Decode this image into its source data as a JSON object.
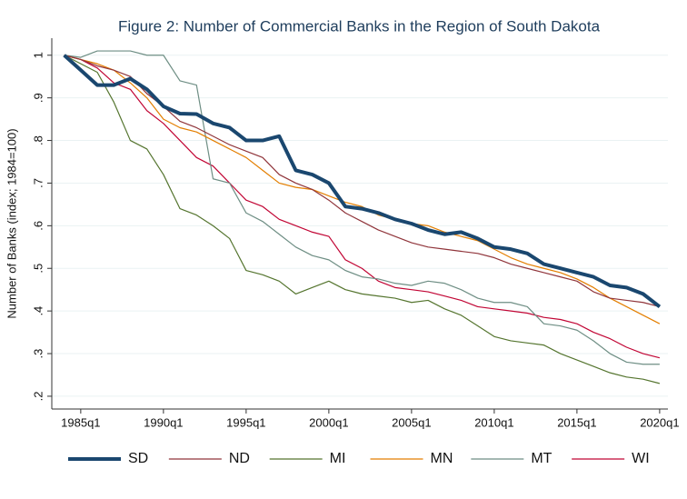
{
  "chart_data": {
    "type": "line",
    "title": "Figure 2: Number of Commercial Banks in the Region of South Dakota",
    "y_label": "Number of Banks (index; 1984=100)",
    "x": [
      96,
      100,
      104,
      108,
      112,
      116,
      120,
      124,
      128,
      132,
      136,
      140,
      144,
      148,
      152,
      156,
      160,
      164,
      168,
      172,
      176,
      180,
      184,
      188,
      192,
      196,
      200,
      204,
      208,
      212,
      216,
      220,
      224,
      228,
      232,
      236,
      240
    ],
    "xlim": [
      93,
      242
    ],
    "xticks": [
      {
        "value": 100,
        "label": "1985q1"
      },
      {
        "value": 120,
        "label": "1990q1"
      },
      {
        "value": 140,
        "label": "1995q1"
      },
      {
        "value": 160,
        "label": "2000q1"
      },
      {
        "value": 180,
        "label": "2005q1"
      },
      {
        "value": 200,
        "label": "2010q1"
      },
      {
        "value": 220,
        "label": "2015q1"
      },
      {
        "value": 240,
        "label": "2020q1"
      }
    ],
    "ylim": [
      0.17,
      1.04
    ],
    "yticks": [
      {
        "value": 0.2,
        "label": ".2"
      },
      {
        "value": 0.3,
        "label": ".3"
      },
      {
        "value": 0.4,
        "label": ".4"
      },
      {
        "value": 0.5,
        "label": ".5"
      },
      {
        "value": 0.6,
        "label": ".6"
      },
      {
        "value": 0.7,
        "label": ".7"
      },
      {
        "value": 0.8,
        "label": ".8"
      },
      {
        "value": 0.9,
        "label": ".9"
      },
      1
    ],
    "grid": true,
    "legend": "bottom",
    "series": [
      {
        "name": "SD",
        "color": "#1a476f",
        "width": 4,
        "values": [
          1.0,
          0.965,
          0.93,
          0.93,
          0.945,
          0.92,
          0.88,
          0.863,
          0.862,
          0.84,
          0.83,
          0.8,
          0.8,
          0.81,
          0.73,
          0.72,
          0.7,
          0.645,
          0.64,
          0.63,
          0.615,
          0.605,
          0.59,
          0.58,
          0.585,
          0.57,
          0.55,
          0.545,
          0.535,
          0.51,
          0.5,
          0.49,
          0.48,
          0.46,
          0.455,
          0.44,
          0.41
        ]
      },
      {
        "name": "ND",
        "color": "#90353b",
        "width": 1.2,
        "values": [
          1.0,
          0.99,
          0.975,
          0.965,
          0.95,
          0.91,
          0.88,
          0.845,
          0.83,
          0.81,
          0.79,
          0.775,
          0.76,
          0.72,
          0.7,
          0.685,
          0.66,
          0.63,
          0.61,
          0.59,
          0.575,
          0.56,
          0.55,
          0.545,
          0.54,
          0.535,
          0.525,
          0.51,
          0.5,
          0.49,
          0.48,
          0.47,
          0.445,
          0.43,
          0.425,
          0.42,
          0.41
        ]
      },
      {
        "name": "MI",
        "color": "#55752f",
        "width": 1.2,
        "values": [
          1.0,
          0.98,
          0.96,
          0.89,
          0.8,
          0.78,
          0.72,
          0.64,
          0.625,
          0.6,
          0.57,
          0.495,
          0.485,
          0.47,
          0.44,
          0.455,
          0.47,
          0.45,
          0.44,
          0.435,
          0.43,
          0.42,
          0.425,
          0.405,
          0.39,
          0.365,
          0.34,
          0.33,
          0.325,
          0.32,
          0.3,
          0.285,
          0.27,
          0.255,
          0.245,
          0.24,
          0.23
        ]
      },
      {
        "name": "MN",
        "color": "#e37e00",
        "width": 1.2,
        "values": [
          1.0,
          0.99,
          0.98,
          0.965,
          0.935,
          0.9,
          0.85,
          0.83,
          0.82,
          0.8,
          0.78,
          0.76,
          0.73,
          0.7,
          0.69,
          0.685,
          0.67,
          0.655,
          0.645,
          0.625,
          0.615,
          0.605,
          0.6,
          0.585,
          0.575,
          0.565,
          0.545,
          0.525,
          0.51,
          0.5,
          0.49,
          0.475,
          0.455,
          0.43,
          0.41,
          0.39,
          0.37
        ]
      },
      {
        "name": "MT",
        "color": "#6e8e84",
        "width": 1.2,
        "values": [
          1.0,
          0.995,
          1.01,
          1.01,
          1.01,
          1.0,
          1.0,
          0.94,
          0.93,
          0.71,
          0.7,
          0.63,
          0.61,
          0.58,
          0.55,
          0.53,
          0.52,
          0.495,
          0.48,
          0.475,
          0.465,
          0.46,
          0.47,
          0.465,
          0.45,
          0.43,
          0.42,
          0.42,
          0.41,
          0.37,
          0.365,
          0.355,
          0.33,
          0.3,
          0.28,
          0.275,
          0.275
        ]
      },
      {
        "name": "WI",
        "color": "#c10534",
        "width": 1.2,
        "values": [
          1.0,
          0.99,
          0.97,
          0.935,
          0.92,
          0.87,
          0.84,
          0.8,
          0.76,
          0.74,
          0.7,
          0.66,
          0.645,
          0.615,
          0.6,
          0.585,
          0.575,
          0.52,
          0.5,
          0.47,
          0.455,
          0.45,
          0.445,
          0.435,
          0.425,
          0.41,
          0.405,
          0.4,
          0.395,
          0.385,
          0.38,
          0.37,
          0.35,
          0.335,
          0.315,
          0.3,
          0.29
        ]
      }
    ]
  }
}
